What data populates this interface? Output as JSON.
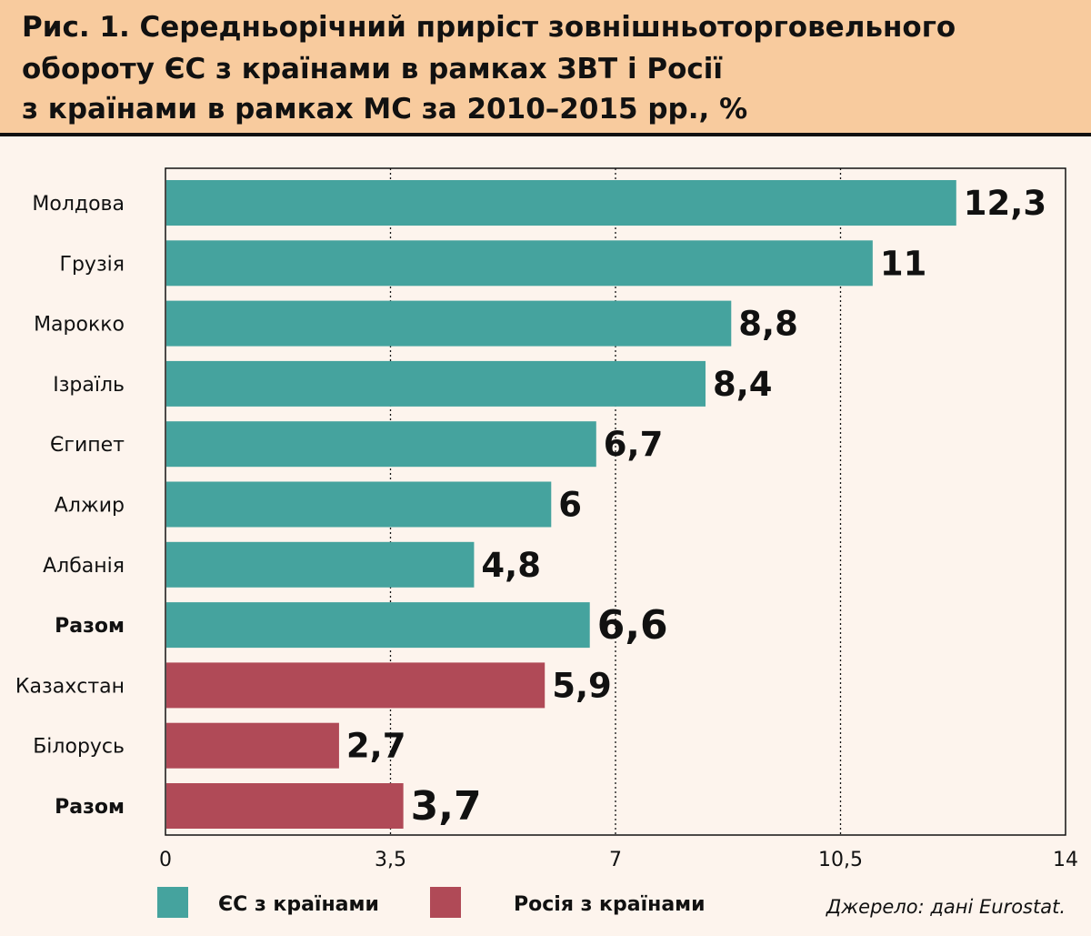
{
  "title_lines": [
    "Рис. 1. Середньорічний приріст зовнішньоторговельного",
    "обороту ЄС з країнами в рамках ЗВТ і Росії",
    "з країнами в рамках МС за 2010–2015 рр., %"
  ],
  "source": "Джерело: дані Eurostat.",
  "colors": {
    "eu": "#45a39e",
    "ru": "#b04a57"
  },
  "chart_data": {
    "type": "bar",
    "orientation": "horizontal",
    "categories": [
      "Молдова",
      "Грузія",
      "Марокко",
      "Ізраїль",
      "Єгипет",
      "Алжир",
      "Албанія",
      "Разом",
      "Казахстан",
      "Білорусь",
      "Разом"
    ],
    "values": [
      12.3,
      11,
      8.8,
      8.4,
      6.7,
      6,
      4.8,
      6.6,
      5.9,
      2.7,
      3.7
    ],
    "value_labels": [
      "12,3",
      "11",
      "8,8",
      "8,4",
      "6,7",
      "6",
      "4,8",
      "6,6",
      "5,9",
      "2,7",
      "3,7"
    ],
    "series_of_bar": [
      "eu",
      "eu",
      "eu",
      "eu",
      "eu",
      "eu",
      "eu",
      "eu",
      "ru",
      "ru",
      "ru"
    ],
    "bold": [
      false,
      false,
      false,
      false,
      false,
      false,
      false,
      true,
      false,
      false,
      true
    ],
    "xlim": [
      0,
      14
    ],
    "xticks": [
      0,
      3.5,
      7,
      10.5,
      14
    ],
    "xtick_labels": [
      "0",
      "3,5",
      "7",
      "10,5",
      "14"
    ],
    "grid": "vertical dotted",
    "legend": [
      {
        "key": "eu",
        "label": "ЄС з країнами"
      },
      {
        "key": "ru",
        "label": "Росія з країнами"
      }
    ],
    "legend_placement": "bottom"
  }
}
